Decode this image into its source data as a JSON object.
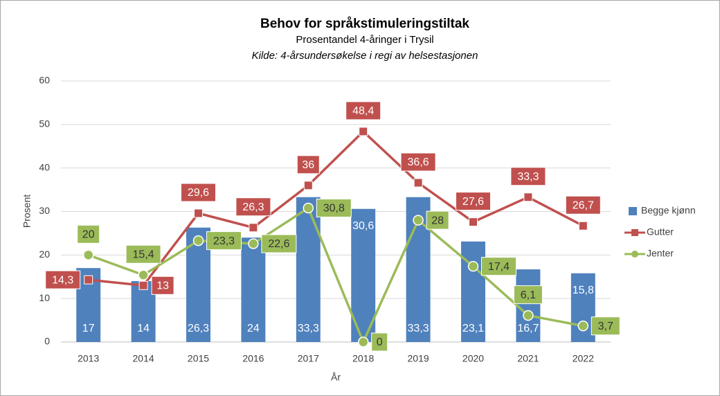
{
  "chart_data": {
    "type": "bar-line",
    "title": "Behov for språkstimuleringstiltak",
    "subtitle": "Prosentandel 4-åringer i Trysil",
    "source": "Kilde: 4-årsundersøkelse i regi av helsestasjonen",
    "x_label": "År",
    "y_label": "Prosent",
    "categories": [
      "2013",
      "2014",
      "2015",
      "2016",
      "2017",
      "2018",
      "2019",
      "2020",
      "2021",
      "2022"
    ],
    "ylim": [
      0,
      60
    ],
    "yticks": [
      0,
      10,
      20,
      30,
      40,
      50,
      60
    ],
    "grid": true,
    "legend": "right",
    "series": [
      {
        "name": "Begge kjønn",
        "kind": "bar",
        "color": "#4f81bd",
        "values": [
          17,
          14,
          26.3,
          24,
          33.3,
          30.6,
          33.3,
          23.1,
          16.7,
          15.8
        ],
        "value_labels": [
          "17",
          "14",
          "26,3",
          "24",
          "33,3",
          "30,6",
          "33,3",
          "23,1",
          "16,7",
          "15,8"
        ]
      },
      {
        "name": "Gutter",
        "kind": "line",
        "marker": "square",
        "color": "#c0504d",
        "values": [
          14.3,
          13,
          29.6,
          26.3,
          36,
          48.4,
          36.6,
          27.6,
          33.3,
          26.7
        ],
        "value_labels": [
          "14,3",
          "13",
          "29,6",
          "26,3",
          "36",
          "48,4",
          "36,6",
          "27,6",
          "33,3",
          "26,7"
        ]
      },
      {
        "name": "Jenter",
        "kind": "line",
        "marker": "circle",
        "color": "#9bbb59",
        "values": [
          20,
          15.4,
          23.3,
          22.6,
          30.8,
          0,
          28,
          17.4,
          6.1,
          3.7
        ],
        "value_labels": [
          "20",
          "15,4",
          "23,3",
          "22,6",
          "30,8",
          "0",
          "28",
          "17,4",
          "6,1",
          "3,7"
        ]
      }
    ]
  }
}
